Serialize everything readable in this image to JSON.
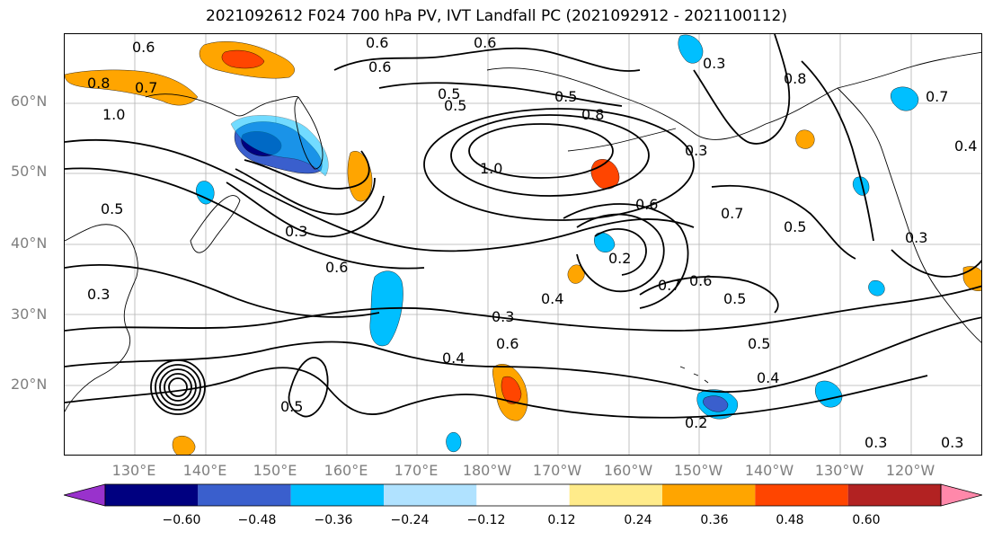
{
  "title": "2021092612 F024 700 hPa PV, IVT Landfall PC (2021092912 - 2021100112)",
  "lat_labels": [
    "60°N",
    "50°N",
    "40°N",
    "30°N",
    "20°N"
  ],
  "lon_labels": [
    "130°E",
    "140°E",
    "150°E",
    "160°E",
    "170°E",
    "180°W",
    "170°W",
    "160°W",
    "150°W",
    "140°W",
    "130°W",
    "120°W"
  ],
  "contour_labels": [
    "0.6",
    "0.6",
    "0.6",
    "0.6",
    "0.8",
    "0.7",
    "1.0",
    "0.5",
    "0.5",
    "0.8",
    "1.0",
    "0.3",
    "0.8",
    "0.7",
    "0.4",
    "0.5",
    "0.3",
    "0.6",
    "0.5",
    "0.6",
    "0.3",
    "0.7",
    "0.4",
    "0.3",
    "0.2",
    "0.7",
    "0.6",
    "0.5",
    "0.5",
    "0.3",
    "0.3",
    "0.4",
    "0.6",
    "0.5",
    "0.2",
    "0.4",
    "0.5",
    "0.3",
    "0.3"
  ],
  "colorbar": {
    "colors": [
      "#9932cc",
      "#000080",
      "#3a5fcd",
      "#00bfff",
      "#b0e2ff",
      "#ffffff",
      "#ffeb8a",
      "#ffa500",
      "#ff4500",
      "#b22222",
      "#ff88aa"
    ],
    "tick_labels": [
      "−0.60",
      "−0.48",
      "−0.36",
      "−0.24",
      "−0.12",
      "0.12",
      "0.24",
      "0.36",
      "0.48",
      "0.60"
    ]
  },
  "colors": {
    "coast": "#000000",
    "grid": "#808080",
    "contour": "#000000"
  },
  "icons": {
    "colorbar_left_arrow": "triangle-left",
    "colorbar_right_arrow": "triangle-right"
  }
}
